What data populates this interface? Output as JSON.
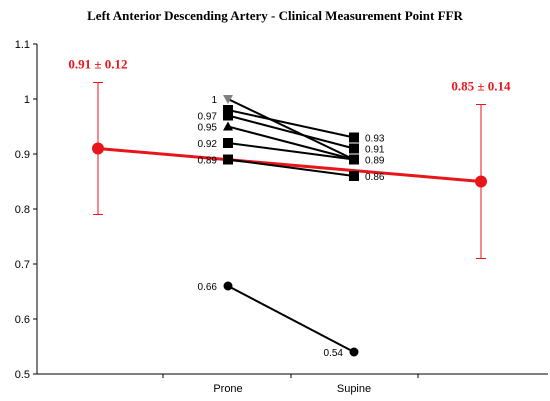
{
  "chart_data": {
    "type": "line",
    "title": "Left Anterior Descending Artery - Clinical Measurement Point FFR",
    "xlabel": "",
    "ylabel": "",
    "ylim": [
      0.5,
      1.1
    ],
    "yticks": [
      "1.1",
      "1",
      "0.9",
      "0.8",
      "0.7",
      "0.6",
      "0.5"
    ],
    "categories": [
      "Prone",
      "Supine"
    ],
    "grid": false,
    "accent_color": "#e8161b",
    "patients": [
      {
        "marker": "triangle-down",
        "color": "#808080",
        "prone": 1.0,
        "supine": 0.89,
        "prone_label": "1",
        "supine_label": ""
      },
      {
        "marker": "square",
        "color": "#000000",
        "prone": 0.98,
        "supine": 0.93,
        "prone_label": "",
        "supine_label": "0.93"
      },
      {
        "marker": "square",
        "color": "#000000",
        "prone": 0.97,
        "supine": 0.91,
        "prone_label": "0.97",
        "supine_label": "0.91"
      },
      {
        "marker": "triangle-up",
        "color": "#000000",
        "prone": 0.95,
        "supine": 0.89,
        "prone_label": "0.95",
        "supine_label": "0.89"
      },
      {
        "marker": "square",
        "color": "#000000",
        "prone": 0.92,
        "supine": 0.89,
        "prone_label": "0.92",
        "supine_label": ""
      },
      {
        "marker": "square",
        "color": "#000000",
        "prone": 0.89,
        "supine": 0.86,
        "prone_label": "0.89",
        "supine_label": "0.86"
      },
      {
        "marker": "circle",
        "color": "#000000",
        "prone": 0.66,
        "supine": 0.54,
        "prone_label": "0.66",
        "supine_label": "0.54"
      }
    ],
    "mean_series": {
      "color": "#e8161b",
      "points": [
        {
          "position": "left",
          "mean": 0.91,
          "sd": 0.12,
          "label": "0.91 ± 0.12"
        },
        {
          "position": "right",
          "mean": 0.85,
          "sd": 0.14,
          "label": "0.85 ± 0.14"
        }
      ]
    }
  }
}
